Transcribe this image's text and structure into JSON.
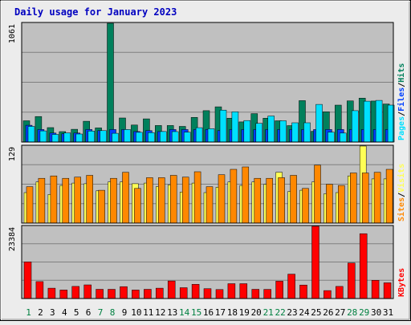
{
  "chart_data": [
    {
      "type": "bar",
      "title": "Daily usage for January 2023",
      "categories": [
        "1",
        "2",
        "3",
        "4",
        "5",
        "6",
        "7",
        "8",
        "9",
        "10",
        "11",
        "12",
        "13",
        "14",
        "15",
        "16",
        "17",
        "18",
        "19",
        "20",
        "21",
        "22",
        "23",
        "24",
        "25",
        "26",
        "27",
        "28",
        "29",
        "30",
        "31"
      ],
      "weekend_days": [
        1,
        7,
        8,
        14,
        15,
        21,
        22,
        28,
        29
      ],
      "ymax_label": "1061",
      "ymax": 1061,
      "series": [
        {
          "name": "Hits",
          "color": "#00805c",
          "values": [
            190,
            228,
            129,
            93,
            114,
            186,
            126,
            1061,
            215,
            152,
            207,
            148,
            148,
            140,
            220,
            280,
            315,
            213,
            180,
            254,
            213,
            190,
            147,
            370,
            96,
            270,
            330,
            368,
            392,
            366,
            340
          ]
        },
        {
          "name": "Files",
          "color": "#0040ff",
          "values": [
            150,
            112,
            80,
            74,
            80,
            112,
            102,
            112,
            112,
            94,
            102,
            94,
            112,
            112,
            112,
            112,
            102,
            112,
            112,
            112,
            112,
            112,
            112,
            112,
            112,
            112,
            112,
            112,
            112,
            112,
            112
          ]
        },
        {
          "name": "Pages",
          "color": "#00e0ff",
          "values": [
            140,
            100,
            68,
            82,
            72,
            98,
            102,
            78,
            112,
            87,
            84,
            94,
            93,
            88,
            128,
            119,
            285,
            270,
            192,
            167,
            232,
            190,
            172,
            172,
            336,
            88,
            80,
            280,
            365,
            372,
            330
          ]
        }
      ],
      "legend_labels": [
        "Pages",
        "Files",
        "Hits"
      ],
      "legend_colors": [
        "#00e0ff",
        "#0040ff",
        "#00805c"
      ]
    },
    {
      "type": "bar",
      "ymax_label": "129",
      "ymax": 129,
      "series": [
        {
          "name": "Visits",
          "color": "#ffff55",
          "values": [
            51,
            69,
            48,
            63,
            67,
            66,
            54,
            69,
            69,
            66,
            67,
            61,
            64,
            52,
            67,
            51,
            60,
            69,
            63,
            69,
            65,
            85,
            53,
            55,
            69,
            49,
            51,
            79,
            129,
            74,
            74
          ]
        },
        {
          "name": "Sites",
          "color": "#ff8800",
          "values": [
            61,
            75,
            79,
            75,
            77,
            80,
            55,
            75,
            85,
            58,
            76,
            76,
            80,
            77,
            86,
            61,
            81,
            90,
            94,
            75,
            75,
            76,
            80,
            58,
            97,
            65,
            63,
            84,
            84,
            85,
            90
          ]
        }
      ],
      "legend_labels": [
        "Sites",
        "Visits"
      ],
      "legend_colors": [
        "#ff8800",
        "#ffff55"
      ]
    },
    {
      "type": "bar",
      "ymax_label": "23384",
      "ymax": 23384,
      "series": [
        {
          "name": "KBytes",
          "color": "#ff0000",
          "values": [
            11846,
            5470,
            3356,
            2760,
            3933,
            4423,
            3000,
            3000,
            3840,
            2760,
            3000,
            3356,
            5700,
            3500,
            4600,
            3200,
            2900,
            4800,
            4800,
            3000,
            2950,
            5600,
            7900,
            4360,
            23384,
            2560,
            3920,
            11500,
            21000,
            5900,
            5100
          ]
        }
      ],
      "legend_labels": [
        "KBytes"
      ],
      "legend_colors": [
        "#ff0000"
      ]
    }
  ]
}
